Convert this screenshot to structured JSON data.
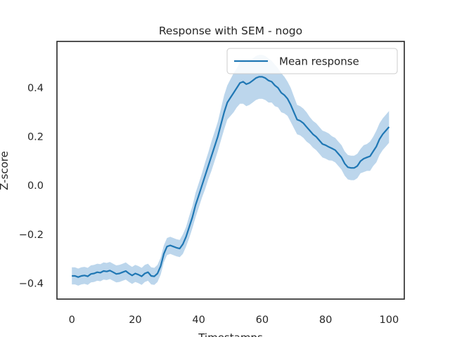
{
  "chart_data": {
    "type": "line",
    "title": "Response with SEM - nogo",
    "xlabel": "Timestamps",
    "ylabel": "Z-score",
    "xlim": [
      -4.7,
      104.8
    ],
    "ylim": [
      -0.465,
      0.59
    ],
    "xticks": [
      0,
      20,
      40,
      60,
      80,
      100
    ],
    "yticks": [
      -0.4,
      -0.2,
      0.0,
      0.2,
      0.4
    ],
    "xtick_labels": [
      "0",
      "20",
      "40",
      "60",
      "80",
      "100"
    ],
    "ytick_labels": [
      "−0.4",
      "−0.2",
      "0.0",
      "0.2",
      "0.4"
    ],
    "grid": false,
    "legend_position": "top-right",
    "line_color": "#1f77b4",
    "band_color": "#a6c8e5",
    "series": [
      {
        "name": "Mean response",
        "x": [
          0,
          1,
          2,
          3,
          4,
          5,
          6,
          7,
          8,
          9,
          10,
          11,
          12,
          13,
          14,
          15,
          16,
          17,
          18,
          19,
          20,
          21,
          22,
          23,
          24,
          25,
          26,
          27,
          28,
          29,
          30,
          31,
          32,
          33,
          34,
          35,
          36,
          37,
          38,
          39,
          40,
          41,
          42,
          43,
          44,
          45,
          46,
          47,
          48,
          49,
          50,
          51,
          52,
          53,
          54,
          55,
          56,
          57,
          58,
          59,
          60,
          61,
          62,
          63,
          64,
          65,
          66,
          67,
          68,
          69,
          70,
          71,
          72,
          73,
          74,
          75,
          76,
          77,
          78,
          79,
          80,
          81,
          82,
          83,
          84,
          85,
          86,
          87,
          88,
          89,
          90,
          91,
          92,
          93,
          94,
          95,
          96,
          97,
          98,
          99,
          100
        ],
        "y": [
          -0.37,
          -0.37,
          -0.375,
          -0.37,
          -0.368,
          -0.372,
          -0.362,
          -0.36,
          -0.355,
          -0.357,
          -0.35,
          -0.352,
          -0.348,
          -0.355,
          -0.362,
          -0.36,
          -0.355,
          -0.35,
          -0.36,
          -0.368,
          -0.36,
          -0.365,
          -0.372,
          -0.36,
          -0.355,
          -0.37,
          -0.372,
          -0.36,
          -0.33,
          -0.28,
          -0.25,
          -0.245,
          -0.25,
          -0.255,
          -0.258,
          -0.24,
          -0.21,
          -0.17,
          -0.13,
          -0.08,
          -0.04,
          0.0,
          0.04,
          0.08,
          0.12,
          0.16,
          0.2,
          0.25,
          0.3,
          0.34,
          0.36,
          0.38,
          0.4,
          0.42,
          0.425,
          0.415,
          0.42,
          0.43,
          0.44,
          0.445,
          0.445,
          0.44,
          0.43,
          0.425,
          0.41,
          0.4,
          0.38,
          0.37,
          0.355,
          0.33,
          0.3,
          0.27,
          0.265,
          0.255,
          0.24,
          0.225,
          0.21,
          0.2,
          0.185,
          0.17,
          0.165,
          0.158,
          0.152,
          0.145,
          0.13,
          0.115,
          0.09,
          0.075,
          0.072,
          0.072,
          0.08,
          0.1,
          0.11,
          0.115,
          0.12,
          0.14,
          0.16,
          0.19,
          0.21,
          0.225,
          0.24
        ],
        "sem": [
          0.035,
          0.035,
          0.035,
          0.035,
          0.035,
          0.035,
          0.035,
          0.035,
          0.035,
          0.035,
          0.035,
          0.035,
          0.035,
          0.035,
          0.035,
          0.035,
          0.035,
          0.035,
          0.035,
          0.035,
          0.035,
          0.035,
          0.035,
          0.035,
          0.035,
          0.035,
          0.035,
          0.035,
          0.035,
          0.035,
          0.035,
          0.035,
          0.035,
          0.035,
          0.035,
          0.04,
          0.04,
          0.045,
          0.045,
          0.05,
          0.05,
          0.05,
          0.055,
          0.055,
          0.06,
          0.06,
          0.06,
          0.065,
          0.07,
          0.07,
          0.075,
          0.08,
          0.08,
          0.085,
          0.09,
          0.09,
          0.09,
          0.09,
          0.09,
          0.09,
          0.09,
          0.09,
          0.09,
          0.085,
          0.085,
          0.08,
          0.08,
          0.075,
          0.07,
          0.07,
          0.065,
          0.06,
          0.06,
          0.06,
          0.06,
          0.055,
          0.055,
          0.055,
          0.055,
          0.055,
          0.055,
          0.055,
          0.05,
          0.05,
          0.05,
          0.05,
          0.05,
          0.05,
          0.05,
          0.05,
          0.05,
          0.05,
          0.055,
          0.055,
          0.06,
          0.06,
          0.065,
          0.065,
          0.065,
          0.065,
          0.065
        ]
      }
    ]
  }
}
